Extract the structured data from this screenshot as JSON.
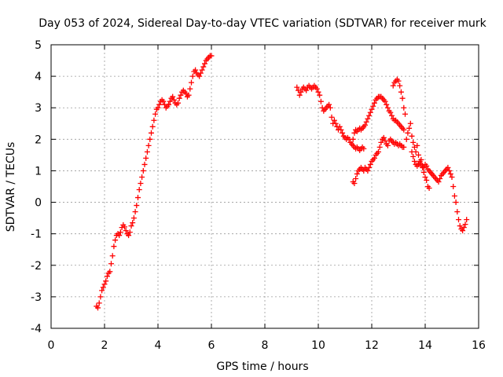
{
  "chart_data": {
    "type": "scatter",
    "title": "Day 053 of 2024, Sidereal Day-to-day VTEC variation (SDTVAR) for receiver murk",
    "xlabel": "GPS time / hours",
    "ylabel": "SDTVAR / TECUs",
    "xlim": [
      0,
      16
    ],
    "ylim": [
      -4,
      5
    ],
    "xticks": [
      "0",
      "2",
      "4",
      "6",
      "8",
      "10",
      "12",
      "14",
      "16"
    ],
    "yticks": [
      "-4",
      "-3",
      "-2",
      "-1",
      "0",
      "1",
      "2",
      "3",
      "4",
      "5"
    ],
    "grid": true,
    "marker": "plus",
    "color": "#ff0000",
    "series": [
      {
        "points": [
          [
            1.7,
            -3.3
          ],
          [
            1.75,
            -3.35
          ],
          [
            1.8,
            -3.2
          ],
          [
            1.85,
            -3.0
          ],
          [
            1.9,
            -2.8
          ],
          [
            1.95,
            -2.7
          ],
          [
            2.0,
            -2.6
          ],
          [
            2.05,
            -2.5
          ],
          [
            2.1,
            -2.35
          ],
          [
            2.15,
            -2.25
          ],
          [
            2.2,
            -2.2
          ],
          [
            2.25,
            -1.95
          ],
          [
            2.3,
            -1.7
          ],
          [
            2.35,
            -1.4
          ],
          [
            2.4,
            -1.2
          ],
          [
            2.45,
            -1.05
          ],
          [
            2.5,
            -1.0
          ],
          [
            2.55,
            -1.05
          ],
          [
            2.6,
            -0.95
          ],
          [
            2.65,
            -0.8
          ],
          [
            2.7,
            -0.72
          ],
          [
            2.75,
            -0.78
          ],
          [
            2.8,
            -0.9
          ],
          [
            2.85,
            -1.0
          ],
          [
            2.9,
            -1.05
          ],
          [
            2.95,
            -0.95
          ],
          [
            3.0,
            -0.75
          ],
          [
            3.05,
            -0.65
          ],
          [
            3.1,
            -0.5
          ],
          [
            3.15,
            -0.3
          ],
          [
            3.2,
            -0.1
          ],
          [
            3.25,
            0.15
          ],
          [
            3.3,
            0.4
          ],
          [
            3.35,
            0.6
          ],
          [
            3.4,
            0.8
          ],
          [
            3.45,
            1.0
          ],
          [
            3.5,
            1.2
          ],
          [
            3.55,
            1.4
          ],
          [
            3.6,
            1.6
          ],
          [
            3.65,
            1.8
          ],
          [
            3.7,
            2.0
          ],
          [
            3.75,
            2.2
          ],
          [
            3.8,
            2.4
          ],
          [
            3.85,
            2.6
          ],
          [
            3.9,
            2.8
          ],
          [
            3.95,
            2.95
          ],
          [
            4.0,
            3.0
          ],
          [
            4.05,
            3.1
          ],
          [
            4.1,
            3.2
          ],
          [
            4.15,
            3.25
          ],
          [
            4.2,
            3.2
          ],
          [
            4.25,
            3.1
          ],
          [
            4.3,
            3.0
          ],
          [
            4.35,
            3.05
          ],
          [
            4.4,
            3.1
          ],
          [
            4.45,
            3.2
          ],
          [
            4.5,
            3.3
          ],
          [
            4.55,
            3.35
          ],
          [
            4.6,
            3.25
          ],
          [
            4.65,
            3.15
          ],
          [
            4.7,
            3.1
          ],
          [
            4.75,
            3.15
          ],
          [
            4.8,
            3.3
          ],
          [
            4.85,
            3.4
          ],
          [
            4.9,
            3.5
          ],
          [
            4.95,
            3.55
          ],
          [
            5.0,
            3.5
          ],
          [
            5.05,
            3.45
          ],
          [
            5.1,
            3.35
          ],
          [
            5.15,
            3.4
          ],
          [
            5.2,
            3.6
          ],
          [
            5.25,
            3.8
          ],
          [
            5.3,
            4.0
          ],
          [
            5.35,
            4.15
          ],
          [
            5.4,
            4.2
          ],
          [
            5.45,
            4.1
          ],
          [
            5.5,
            4.05
          ],
          [
            5.55,
            4.0
          ],
          [
            5.6,
            4.1
          ],
          [
            5.65,
            4.2
          ],
          [
            5.7,
            4.3
          ],
          [
            5.75,
            4.4
          ],
          [
            5.8,
            4.5
          ],
          [
            5.85,
            4.55
          ],
          [
            5.9,
            4.6
          ],
          [
            5.95,
            4.65
          ],
          [
            6.0,
            4.65
          ]
        ]
      },
      {
        "points": [
          [
            9.2,
            3.65
          ],
          [
            9.25,
            3.55
          ],
          [
            9.3,
            3.4
          ],
          [
            9.35,
            3.5
          ],
          [
            9.4,
            3.6
          ],
          [
            9.45,
            3.65
          ],
          [
            9.5,
            3.6
          ],
          [
            9.55,
            3.55
          ],
          [
            9.6,
            3.65
          ],
          [
            9.65,
            3.7
          ],
          [
            9.7,
            3.65
          ],
          [
            9.75,
            3.6
          ],
          [
            9.8,
            3.65
          ],
          [
            9.85,
            3.7
          ],
          [
            9.9,
            3.65
          ],
          [
            9.95,
            3.6
          ],
          [
            10.0,
            3.5
          ],
          [
            10.05,
            3.4
          ],
          [
            10.1,
            3.2
          ],
          [
            10.15,
            3.0
          ],
          [
            10.2,
            2.9
          ],
          [
            10.25,
            2.95
          ],
          [
            10.3,
            3.0
          ],
          [
            10.35,
            3.05
          ],
          [
            10.4,
            3.1
          ],
          [
            10.45,
            3.0
          ],
          [
            10.5,
            2.7
          ],
          [
            10.55,
            2.5
          ],
          [
            10.6,
            2.6
          ],
          [
            10.65,
            2.5
          ],
          [
            10.7,
            2.4
          ],
          [
            10.75,
            2.3
          ],
          [
            10.8,
            2.4
          ],
          [
            10.85,
            2.3
          ],
          [
            10.9,
            2.2
          ],
          [
            10.95,
            2.1
          ],
          [
            11.0,
            2.05
          ],
          [
            11.05,
            2.0
          ],
          [
            11.1,
            2.05
          ],
          [
            11.15,
            2.0
          ],
          [
            11.2,
            1.9
          ],
          [
            11.25,
            1.85
          ],
          [
            11.3,
            1.8
          ],
          [
            11.35,
            1.75
          ],
          [
            11.4,
            1.7
          ],
          [
            11.45,
            1.75
          ],
          [
            11.5,
            1.7
          ],
          [
            11.55,
            1.65
          ],
          [
            11.6,
            1.7
          ],
          [
            11.65,
            1.75
          ],
          [
            11.7,
            1.7
          ],
          [
            11.3,
            2.0
          ],
          [
            11.35,
            2.2
          ],
          [
            11.4,
            2.3
          ],
          [
            11.45,
            2.25
          ],
          [
            11.5,
            2.3
          ],
          [
            11.55,
            2.35
          ],
          [
            11.6,
            2.3
          ],
          [
            11.65,
            2.35
          ],
          [
            11.7,
            2.4
          ],
          [
            11.75,
            2.45
          ],
          [
            11.8,
            2.55
          ],
          [
            11.85,
            2.65
          ],
          [
            11.9,
            2.75
          ],
          [
            11.95,
            2.85
          ],
          [
            12.0,
            2.95
          ],
          [
            12.05,
            3.05
          ],
          [
            12.1,
            3.15
          ],
          [
            12.15,
            3.25
          ],
          [
            12.2,
            3.3
          ],
          [
            12.25,
            3.35
          ],
          [
            12.3,
            3.35
          ],
          [
            12.35,
            3.35
          ],
          [
            12.4,
            3.3
          ],
          [
            12.45,
            3.25
          ],
          [
            12.5,
            3.2
          ],
          [
            12.55,
            3.1
          ],
          [
            12.6,
            3.0
          ],
          [
            12.65,
            2.9
          ],
          [
            12.7,
            2.85
          ],
          [
            12.75,
            2.75
          ],
          [
            12.8,
            2.65
          ],
          [
            12.85,
            2.6
          ],
          [
            12.9,
            2.6
          ],
          [
            12.95,
            2.55
          ],
          [
            13.0,
            2.5
          ],
          [
            13.05,
            2.45
          ],
          [
            13.1,
            2.4
          ],
          [
            13.15,
            2.35
          ],
          [
            13.2,
            2.3
          ],
          [
            12.8,
            3.7
          ],
          [
            12.85,
            3.8
          ],
          [
            12.9,
            3.85
          ],
          [
            12.95,
            3.9
          ],
          [
            13.0,
            3.85
          ],
          [
            13.05,
            3.7
          ],
          [
            13.1,
            3.5
          ],
          [
            13.15,
            3.3
          ],
          [
            13.2,
            3.0
          ],
          [
            13.25,
            2.8
          ],
          [
            11.3,
            0.65
          ],
          [
            11.35,
            0.6
          ],
          [
            11.4,
            0.75
          ],
          [
            11.45,
            0.9
          ],
          [
            11.5,
            1.0
          ],
          [
            11.55,
            1.05
          ],
          [
            11.6,
            1.1
          ],
          [
            11.65,
            1.05
          ],
          [
            11.7,
            1.0
          ],
          [
            11.75,
            1.1
          ],
          [
            11.8,
            1.05
          ],
          [
            11.85,
            1.0
          ],
          [
            11.9,
            1.1
          ],
          [
            11.95,
            1.2
          ],
          [
            12.0,
            1.3
          ],
          [
            12.05,
            1.35
          ],
          [
            12.1,
            1.4
          ],
          [
            12.15,
            1.5
          ],
          [
            12.2,
            1.55
          ],
          [
            12.25,
            1.6
          ],
          [
            12.3,
            1.75
          ],
          [
            12.35,
            1.9
          ],
          [
            12.4,
            2.0
          ],
          [
            12.45,
            2.05
          ],
          [
            12.5,
            1.95
          ],
          [
            12.55,
            1.85
          ],
          [
            12.6,
            1.8
          ],
          [
            12.65,
            1.95
          ],
          [
            12.7,
            2.0
          ],
          [
            12.75,
            1.95
          ],
          [
            12.8,
            1.9
          ],
          [
            12.85,
            1.85
          ],
          [
            12.9,
            1.9
          ],
          [
            12.95,
            1.85
          ],
          [
            13.0,
            1.8
          ],
          [
            13.05,
            1.85
          ],
          [
            13.1,
            1.8
          ],
          [
            13.15,
            1.75
          ],
          [
            13.2,
            1.75
          ],
          [
            13.3,
            2.0
          ],
          [
            13.35,
            2.2
          ],
          [
            13.4,
            2.35
          ],
          [
            13.45,
            2.5
          ],
          [
            13.5,
            2.1
          ],
          [
            13.55,
            1.9
          ],
          [
            13.6,
            1.75
          ],
          [
            13.65,
            1.6
          ],
          [
            13.7,
            1.8
          ],
          [
            13.75,
            1.5
          ],
          [
            13.8,
            1.3
          ],
          [
            13.85,
            1.35
          ],
          [
            13.9,
            1.1
          ],
          [
            13.95,
            0.95
          ],
          [
            14.0,
            0.8
          ],
          [
            14.05,
            0.7
          ],
          [
            14.1,
            0.5
          ],
          [
            14.15,
            0.45
          ],
          [
            13.5,
            1.6
          ],
          [
            13.55,
            1.45
          ],
          [
            13.6,
            1.3
          ],
          [
            13.65,
            1.2
          ],
          [
            13.7,
            1.15
          ],
          [
            13.75,
            1.2
          ],
          [
            13.8,
            1.25
          ],
          [
            13.85,
            1.2
          ],
          [
            13.9,
            1.15
          ],
          [
            13.95,
            1.1
          ],
          [
            14.0,
            1.2
          ],
          [
            14.05,
            1.15
          ],
          [
            14.1,
            1.05
          ],
          [
            14.15,
            1.0
          ],
          [
            14.2,
            0.95
          ],
          [
            14.25,
            0.9
          ],
          [
            14.3,
            0.85
          ],
          [
            14.35,
            0.8
          ],
          [
            14.4,
            0.75
          ],
          [
            14.45,
            0.7
          ],
          [
            14.5,
            0.65
          ],
          [
            14.55,
            0.75
          ],
          [
            14.6,
            0.85
          ],
          [
            14.65,
            0.9
          ],
          [
            14.7,
            0.95
          ],
          [
            14.75,
            1.0
          ],
          [
            14.8,
            1.05
          ],
          [
            14.85,
            1.1
          ],
          [
            14.9,
            1.0
          ],
          [
            14.95,
            0.9
          ],
          [
            15.0,
            0.8
          ],
          [
            15.05,
            0.5
          ],
          [
            15.1,
            0.2
          ],
          [
            15.15,
            0.0
          ],
          [
            15.2,
            -0.3
          ],
          [
            15.25,
            -0.55
          ],
          [
            15.3,
            -0.75
          ],
          [
            15.35,
            -0.85
          ],
          [
            15.4,
            -0.9
          ],
          [
            15.45,
            -0.8
          ],
          [
            15.5,
            -0.7
          ],
          [
            15.55,
            -0.55
          ]
        ]
      }
    ]
  }
}
